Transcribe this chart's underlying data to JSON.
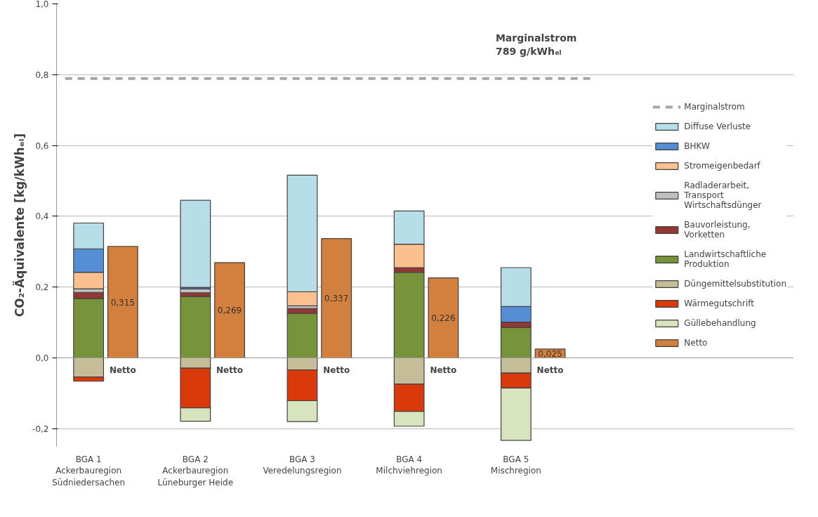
{
  "chart_data": {
    "type": "bar",
    "stacked": true,
    "ylabel": "CO₂-Äquivalente [kg/kWhₑₗ]",
    "categories": [
      "BGA 1\nAckerbauregion\nSüdniedersachen",
      "Netto",
      "BGA 2\nAckerbauregion\nLüneburger Heide",
      "Netto",
      "BGA 3\nVeredelungsregion",
      "Netto",
      "BGA 4\nMilchviehregion",
      "Netto",
      "BGA 5\nMischregion",
      "Netto"
    ],
    "series": [
      {
        "name": "Landwirtschaftliche\nProduktion",
        "color": "#77933c",
        "values": [
          0.168,
          null,
          0.174,
          null,
          0.126,
          null,
          0.242,
          null,
          0.086,
          null
        ]
      },
      {
        "name": "Bauvorleistung,\nVorketten",
        "color": "#953735",
        "values": [
          0.017,
          null,
          0.01,
          null,
          0.013,
          null,
          0.013,
          null,
          0.015,
          null
        ]
      },
      {
        "name": "Radladerarbeit,\nTransport\nWirtschaftsdünger",
        "color": "#bfbfbf",
        "values": [
          0.01,
          null,
          0.011,
          null,
          0.008,
          null,
          null,
          null,
          null,
          null
        ]
      },
      {
        "name": "Stromeigenbedarf",
        "color": "#fac090",
        "values": [
          0.047,
          null,
          null,
          null,
          0.04,
          null,
          0.066,
          null,
          null,
          null
        ]
      },
      {
        "name": "BHKW",
        "color": "#558ed5",
        "values": [
          0.066,
          null,
          0.004,
          null,
          null,
          null,
          null,
          null,
          0.044,
          null
        ]
      },
      {
        "name": "Diffuse Verluste",
        "color": "#b7dde8",
        "values": [
          0.073,
          null,
          0.246,
          null,
          0.329,
          null,
          0.094,
          null,
          0.11,
          null
        ]
      },
      {
        "name": "Düngemittelsubstitution",
        "color": "#c4bd97",
        "values": [
          -0.054,
          null,
          -0.029,
          null,
          -0.034,
          null,
          -0.074,
          null,
          -0.043,
          null
        ]
      },
      {
        "name": "Wärmegutschrift",
        "color": "#d9390b",
        "values": [
          -0.012,
          null,
          -0.112,
          null,
          -0.087,
          null,
          -0.077,
          null,
          -0.042,
          null
        ]
      },
      {
        "name": "Güllebehandlung",
        "color": "#d7e4bd",
        "values": [
          null,
          null,
          -0.038,
          null,
          -0.059,
          null,
          -0.042,
          null,
          -0.148,
          null
        ]
      },
      {
        "name": "Netto",
        "color": "#d3803e",
        "values": [
          null,
          0.315,
          null,
          0.269,
          null,
          0.337,
          null,
          0.226,
          null,
          0.025
        ],
        "value_labels": [
          null,
          "0,315",
          null,
          "0,269",
          null,
          "0,337",
          null,
          "0,226",
          null,
          "0,025"
        ]
      }
    ],
    "ylim": [
      -0.25,
      1.0
    ],
    "yticks": [
      {
        "value": -0.2,
        "label": "-0,2"
      },
      {
        "value": 0,
        "label": "0,0"
      },
      {
        "value": 0.2,
        "label": "0,2"
      },
      {
        "value": 0.4,
        "label": "0,4"
      },
      {
        "value": 0.6,
        "label": "0,6"
      },
      {
        "value": 0.8,
        "label": "0,8"
      },
      {
        "value": 1.0,
        "label": "1,0"
      }
    ],
    "ref_lines": [
      {
        "axis": "y",
        "value": 0.789,
        "label": "Marginalstrom",
        "color": "#a6a6a6",
        "line_style": "dashed"
      }
    ],
    "annotations": [
      "Marginalstrom\n789 g/kWhₑₗ"
    ],
    "grid": "y",
    "legend": "right"
  }
}
